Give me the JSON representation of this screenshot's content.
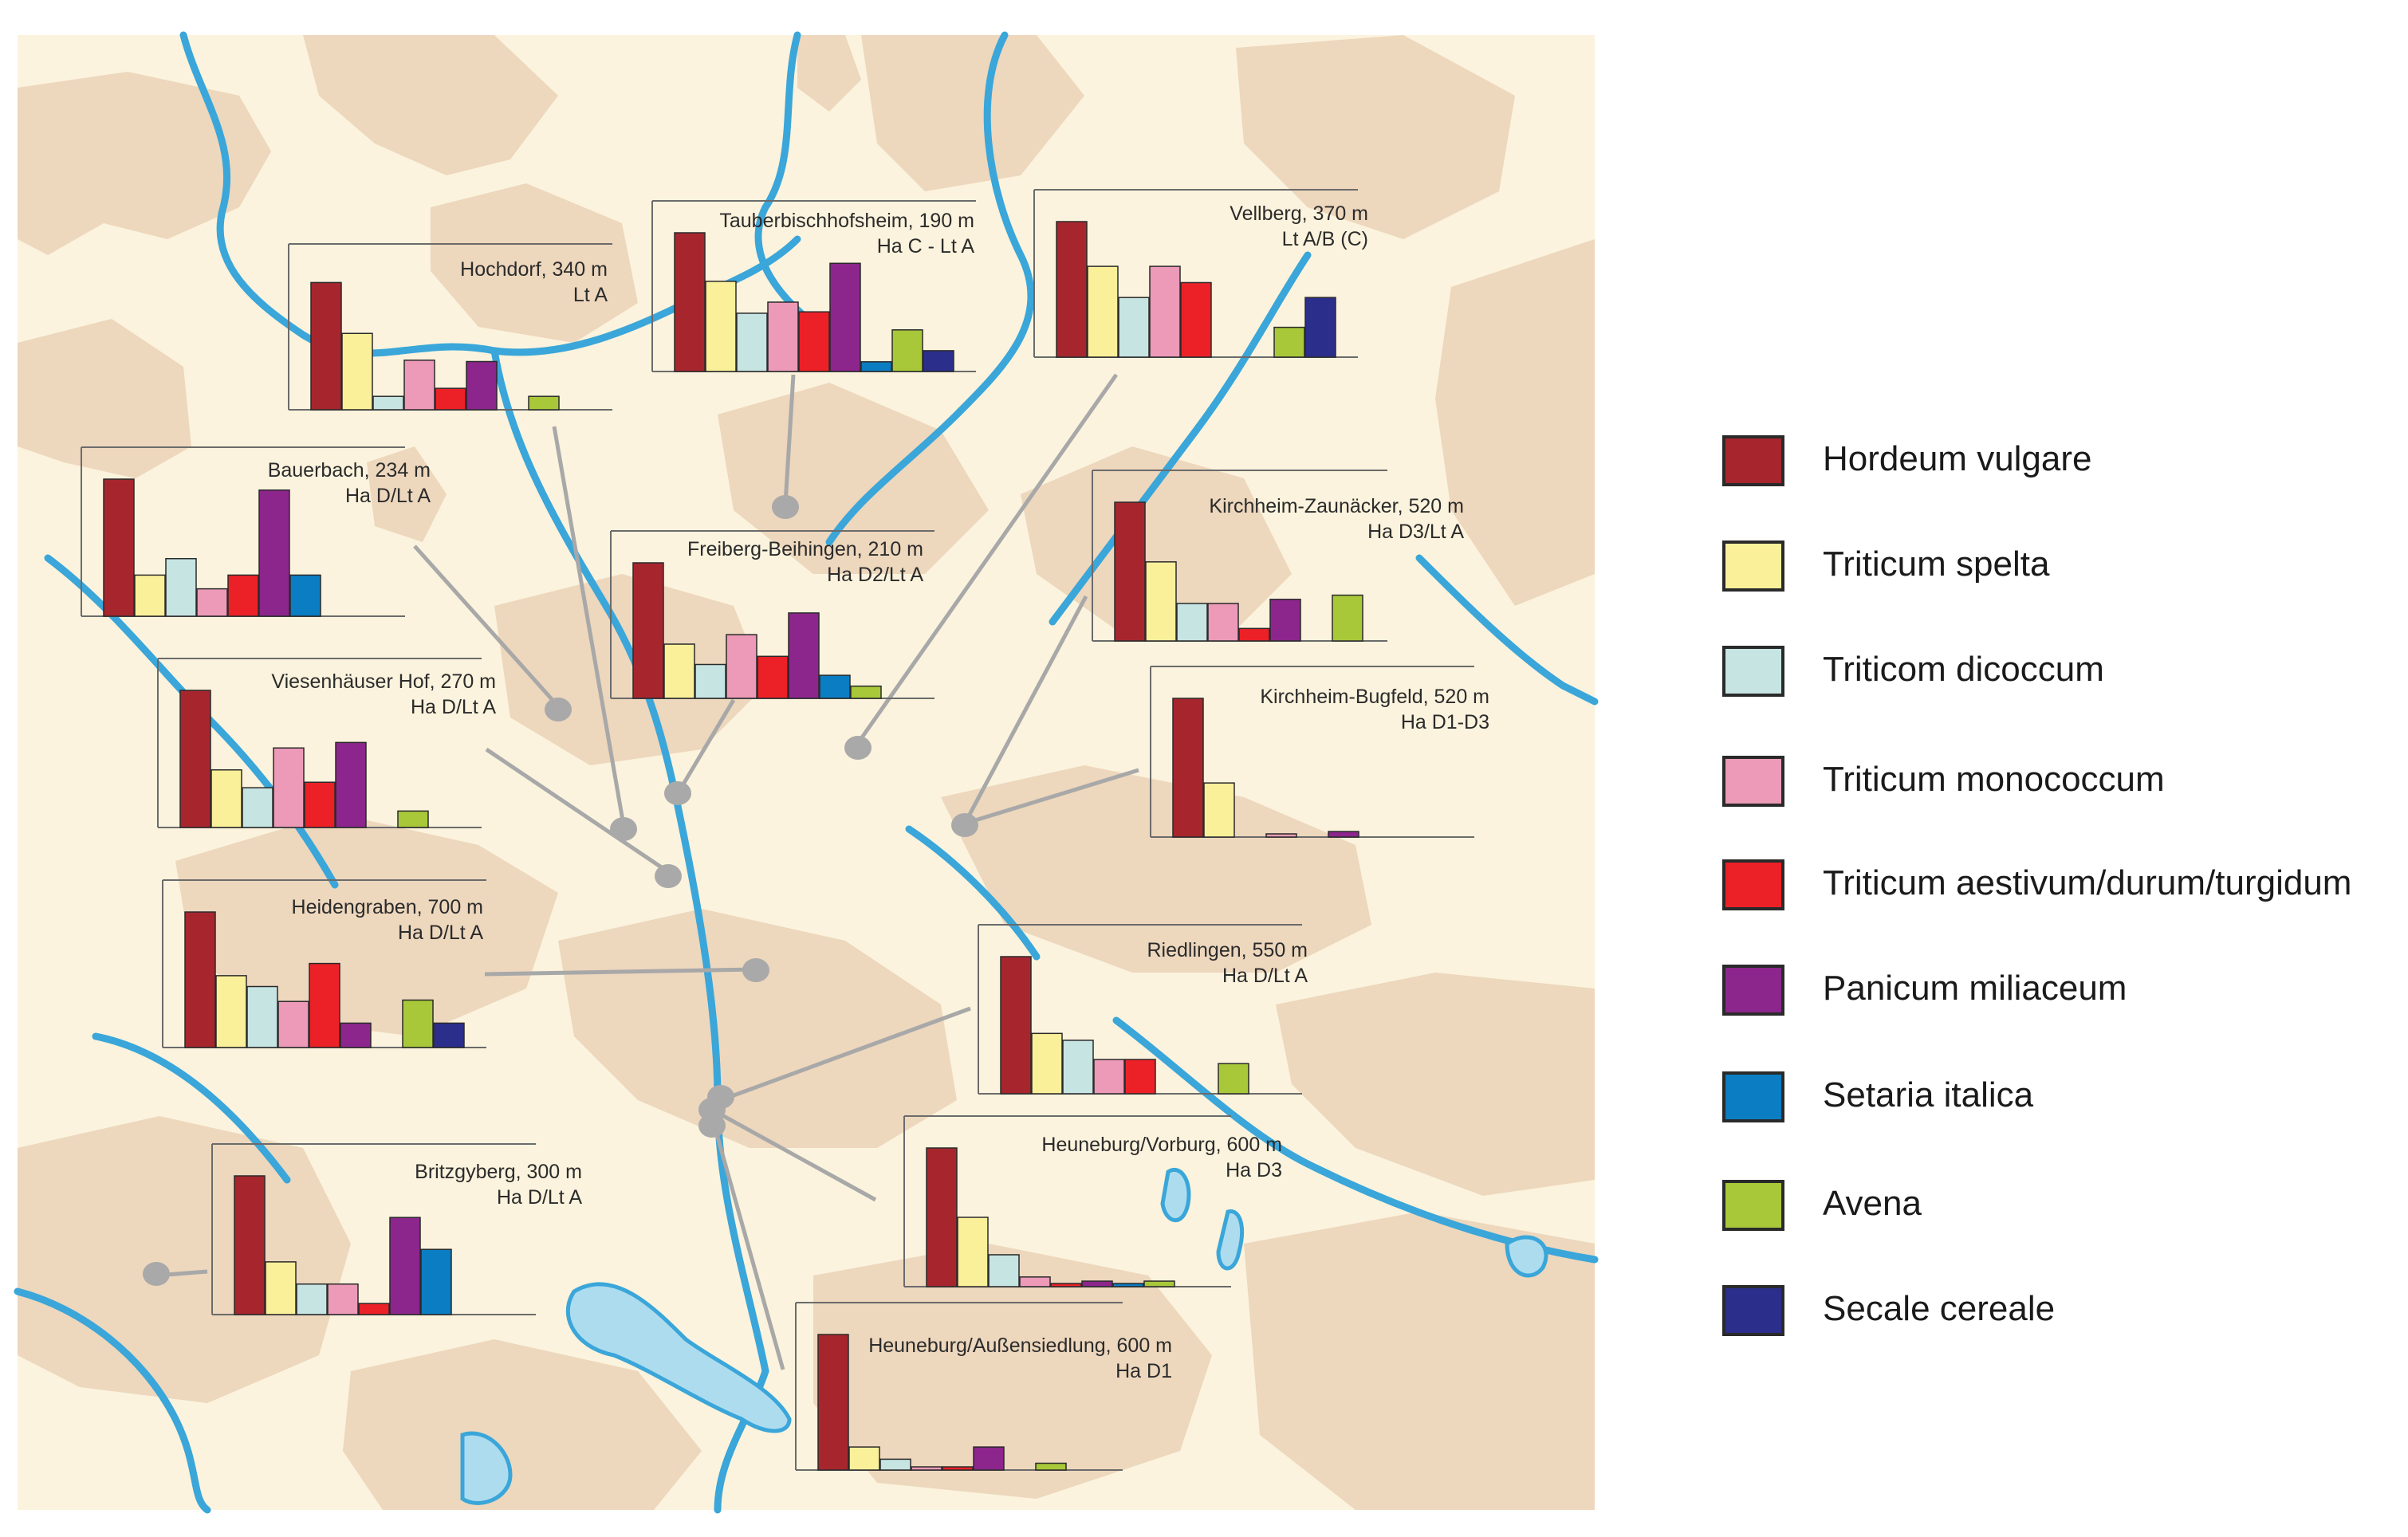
{
  "colors": {
    "background": "#fbf3dd",
    "terrain": "#edd7bd",
    "water": "#aedcef",
    "water_stroke": "#3aa6d9",
    "pin": "#a9a9a9",
    "leader": "#a8a8a8"
  },
  "legend": [
    {
      "label": "Hordeum vulgare",
      "color": "#a7262e"
    },
    {
      "label": "Triticum spelta",
      "color": "#fbf09a"
    },
    {
      "label": "Triticom dicoccum",
      "color": "#c6e4e2"
    },
    {
      "label": "Triticum monococcum",
      "color": "#ec9ab7"
    },
    {
      "label": "Triticum aestivum/durum/turgidum",
      "color": "#ec2127"
    },
    {
      "label": "Panicum miliaceum",
      "color": "#8c268c"
    },
    {
      "label": "Setaria italica",
      "color": "#0b7dc2"
    },
    {
      "label": "Avena",
      "color": "#a8c83a"
    },
    {
      "label": "Secale cereale",
      "color": "#2c2e8c"
    }
  ],
  "sites": [
    {
      "name": "Hochdorf,  340 m",
      "period": "Lt A",
      "values": [
        0.95,
        0.57,
        0.1,
        0.37,
        0.16,
        0.36,
        0,
        0.1,
        0
      ]
    },
    {
      "name": "Tauberbischhofsheim, 190 m",
      "period": "Ha C - Lt A",
      "values": [
        1.0,
        0.65,
        0.42,
        0.5,
        0.43,
        0.78,
        0.07,
        0.3,
        0.15
      ]
    },
    {
      "name": "Vellberg, 370 m",
      "period": "Lt A/B (C)",
      "values": [
        1.0,
        0.67,
        0.44,
        0.67,
        0.55,
        0,
        0,
        0.22,
        0.44
      ]
    },
    {
      "name": "Bauerbach, 234 m",
      "period": "Ha D/Lt A",
      "values": [
        1.0,
        0.3,
        0.42,
        0.2,
        0.3,
        0.92,
        0.3,
        0,
        0
      ]
    },
    {
      "name": "Freiberg-Beihingen, 210 m",
      "period": "Ha D2/Lt A",
      "values": [
        1.0,
        0.4,
        0.25,
        0.47,
        0.31,
        0.63,
        0.17,
        0.09,
        0
      ]
    },
    {
      "name": "Kirchheim-Zaunäcker, 520 m",
      "period": "Ha D3/Lt A",
      "values": [
        1.0,
        0.57,
        0.27,
        0.27,
        0.09,
        0.3,
        0,
        0.33,
        0
      ]
    },
    {
      "name": "Viesenhäuser Hof, 270 m",
      "period": "Ha D/Lt A",
      "values": [
        1.0,
        0.42,
        0.29,
        0.58,
        0.33,
        0.62,
        0,
        0.12,
        0
      ]
    },
    {
      "name": "Kirchheim-Bugfeld, 520 m",
      "period": "Ha D1-D3",
      "values": [
        1.0,
        0.39,
        0,
        0.02,
        0,
        0.04,
        0,
        0,
        0
      ]
    },
    {
      "name": "Heidengraben, 700 m",
      "period": "Ha D/Lt A",
      "values": [
        1.0,
        0.53,
        0.45,
        0.34,
        0.62,
        0.18,
        0,
        0.35,
        0.18
      ]
    },
    {
      "name": "Riedlingen, 550 m",
      "period": "Ha D/Lt A",
      "values": [
        1.0,
        0.44,
        0.39,
        0.25,
        0.25,
        0,
        0,
        0.22,
        0
      ]
    },
    {
      "name": "Britzgyberg, 300 m",
      "period": "Ha D/Lt A",
      "values": [
        1.0,
        0.38,
        0.22,
        0.22,
        0.08,
        0.7,
        0.47,
        0,
        0
      ]
    },
    {
      "name": "Heuneburg/Vorburg, 600 m",
      "period": "Ha D3",
      "values": [
        1.0,
        0.5,
        0.23,
        0.07,
        0.02,
        0.04,
        0.01,
        0.04,
        0
      ]
    },
    {
      "name": "Heuneburg/Außensiedlung, 600 m",
      "period": "Ha D1",
      "values": [
        1.0,
        0.17,
        0.08,
        0.02,
        0.02,
        0.17,
        0,
        0.05,
        0
      ]
    }
  ]
}
